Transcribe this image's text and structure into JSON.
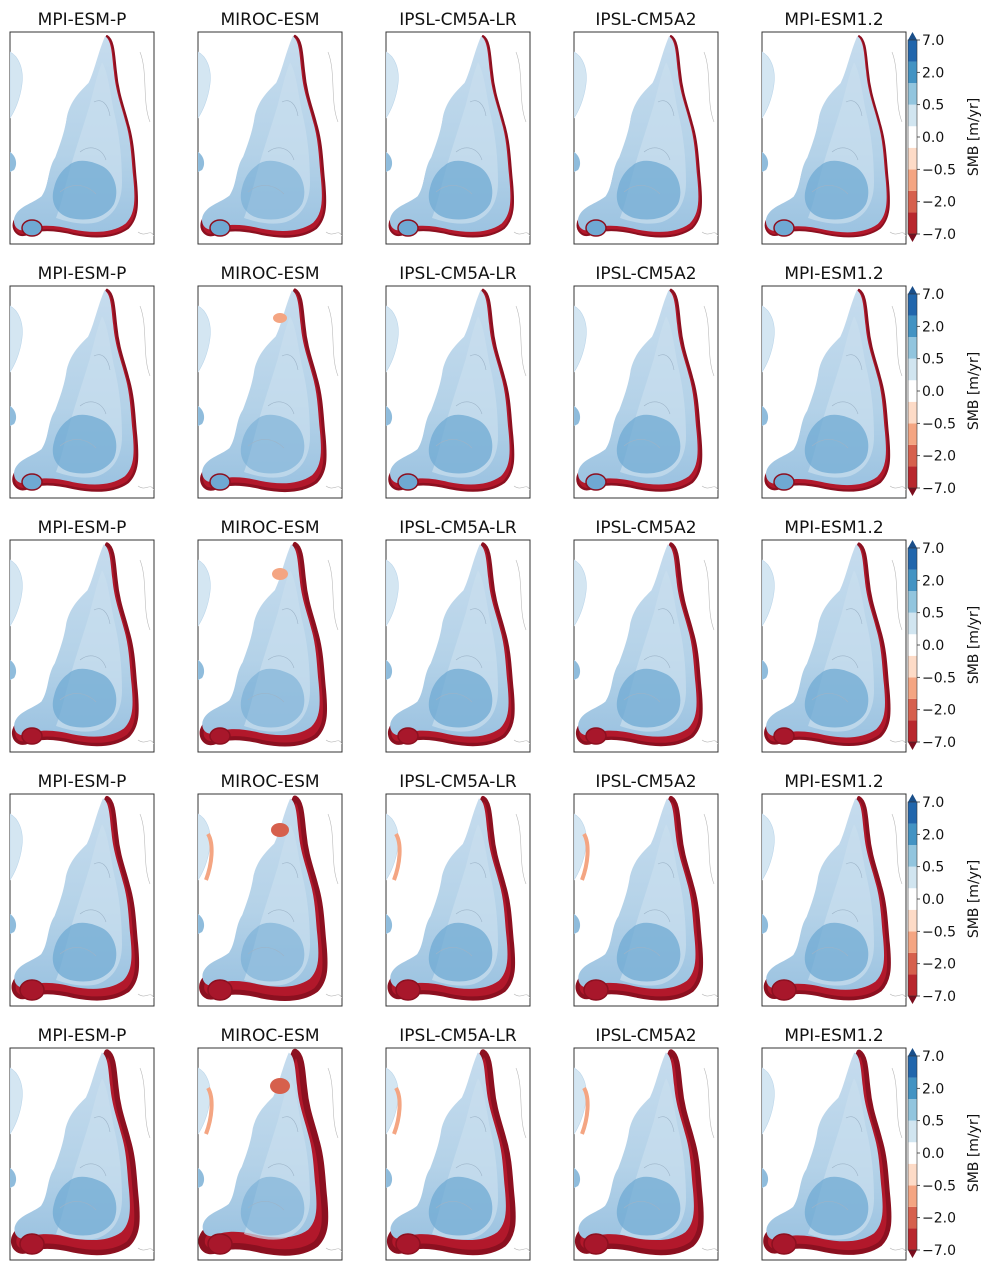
{
  "colorbar": {
    "label": "SMB [m/yr]",
    "ticks": [
      "7.0",
      "2.0",
      "0.5",
      "0.0",
      "−0.5",
      "−2.0",
      "−7.0"
    ],
    "colors": [
      "#b8272d",
      "#d6604d",
      "#f4a582",
      "#fddbc7",
      "#ffffff",
      "#d1e5f0",
      "#92c5de",
      "#4393c3",
      "#2166ac"
    ],
    "extend": "both"
  },
  "chart_data": {
    "type": "heatmap",
    "layout": "5 rows x 5 columns of map panels",
    "column_titles": [
      "MPI-ESM-P",
      "MIROC-ESM",
      "IPSL-CM5A-LR",
      "IPSL-CM5A2",
      "MPI-ESM1.2"
    ],
    "row_titles": [
      [
        "MPI-ESM-P",
        "MIROC-ESM",
        "IPSL-CM5A-LR",
        "IPSL-CM5A2",
        "MPI-ESM1.2"
      ],
      [
        "MPI-ESM-P",
        "MIROC-ESM",
        "IPSL-CM5A-LR",
        "IPSL-CM5A2",
        "MPI-ESM1.2"
      ],
      [
        "MPI-ESM-P",
        "MIROC-ESM",
        "IPSL-CM5A-LR",
        "IPSL-CM5A2",
        "MPI-ESM1.2"
      ],
      [
        "MPI-ESM-P",
        "MIROC-ESM",
        "IPSL-CM5A-LR",
        "IPSL-CM5A2",
        "MPI-ESM1.2"
      ],
      [
        "MPI-ESM-P",
        "MIROC-ESM",
        "IPSL-CM5A-LR",
        "IPSL-CM5A2",
        "MPI-ESM1.2"
      ]
    ],
    "colorbar_levels": [
      -7.0,
      -2.0,
      -0.5,
      0.0,
      0.5,
      2.0,
      7.0
    ],
    "colorbar_label": "SMB [m/yr]",
    "colormap": "RdBu (red = negative, blue = positive)"
  }
}
